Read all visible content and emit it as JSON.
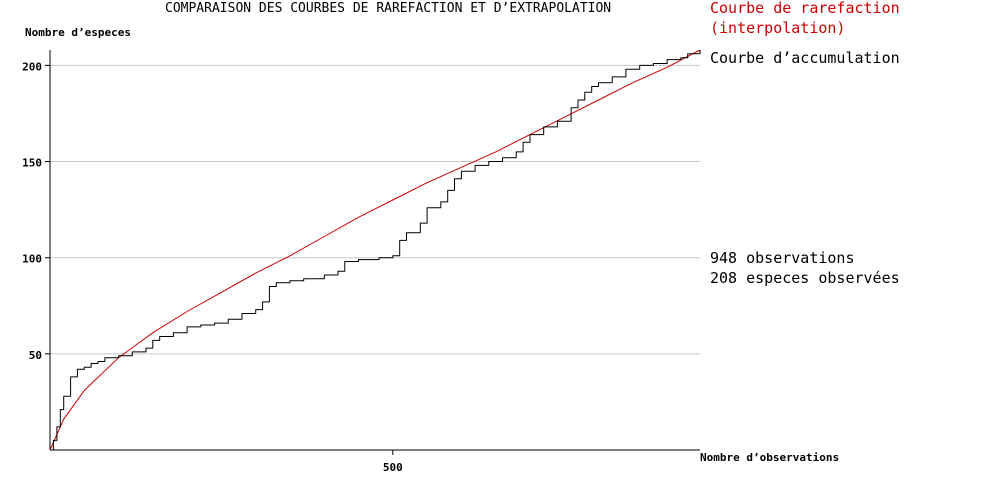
{
  "chart_data": {
    "type": "line",
    "title": "COMPARAISON DES COURBES DE RAREFACTION ET D’EXTRAPOLATION",
    "xlabel": "Nombre d’observations",
    "ylabel": "Nombre d’especes",
    "xlim": [
      0,
      948
    ],
    "ylim": [
      0,
      208
    ],
    "x_ticks": [
      500
    ],
    "y_ticks": [
      50,
      100,
      150,
      200
    ],
    "grid": "horizontal",
    "legend_position": "right",
    "series": [
      {
        "name": "Courbe de rarefaction",
        "name_line2": "(interpolation)",
        "color": "#cc0000",
        "style": "smooth",
        "points": [
          [
            0,
            0
          ],
          [
            20,
            16
          ],
          [
            50,
            31
          ],
          [
            100,
            48
          ],
          [
            150,
            61
          ],
          [
            200,
            72
          ],
          [
            250,
            82
          ],
          [
            300,
            92
          ],
          [
            350,
            101
          ],
          [
            400,
            111
          ],
          [
            450,
            121
          ],
          [
            500,
            130
          ],
          [
            550,
            139
          ],
          [
            600,
            147
          ],
          [
            650,
            155
          ],
          [
            700,
            164
          ],
          [
            750,
            173
          ],
          [
            800,
            182
          ],
          [
            850,
            191
          ],
          [
            900,
            199
          ],
          [
            948,
            208
          ]
        ]
      },
      {
        "name": "Courbe d’accumulation",
        "color": "#000000",
        "style": "step",
        "points": [
          [
            0,
            0
          ],
          [
            5,
            5
          ],
          [
            10,
            12
          ],
          [
            15,
            21
          ],
          [
            20,
            28
          ],
          [
            30,
            38
          ],
          [
            40,
            42
          ],
          [
            50,
            43
          ],
          [
            60,
            45
          ],
          [
            70,
            46
          ],
          [
            80,
            48
          ],
          [
            100,
            49
          ],
          [
            120,
            51
          ],
          [
            140,
            53
          ],
          [
            150,
            57
          ],
          [
            160,
            59
          ],
          [
            180,
            61
          ],
          [
            200,
            64
          ],
          [
            220,
            65
          ],
          [
            240,
            66
          ],
          [
            260,
            68
          ],
          [
            280,
            71
          ],
          [
            300,
            73
          ],
          [
            310,
            77
          ],
          [
            320,
            85
          ],
          [
            330,
            87
          ],
          [
            350,
            88
          ],
          [
            370,
            89
          ],
          [
            400,
            91
          ],
          [
            420,
            93
          ],
          [
            430,
            98
          ],
          [
            450,
            99
          ],
          [
            480,
            100
          ],
          [
            500,
            101
          ],
          [
            510,
            109
          ],
          [
            520,
            113
          ],
          [
            540,
            118
          ],
          [
            550,
            126
          ],
          [
            570,
            129
          ],
          [
            580,
            135
          ],
          [
            590,
            141
          ],
          [
            600,
            145
          ],
          [
            620,
            148
          ],
          [
            640,
            150
          ],
          [
            660,
            152
          ],
          [
            680,
            155
          ],
          [
            690,
            160
          ],
          [
            700,
            164
          ],
          [
            720,
            168
          ],
          [
            740,
            171
          ],
          [
            760,
            178
          ],
          [
            770,
            182
          ],
          [
            780,
            186
          ],
          [
            790,
            189
          ],
          [
            800,
            191
          ],
          [
            820,
            194
          ],
          [
            840,
            198
          ],
          [
            860,
            200
          ],
          [
            880,
            201
          ],
          [
            900,
            203
          ],
          [
            920,
            204
          ],
          [
            930,
            206
          ],
          [
            948,
            208
          ]
        ]
      }
    ],
    "annotations": [
      "948 observations",
      "208 especes observées"
    ]
  }
}
